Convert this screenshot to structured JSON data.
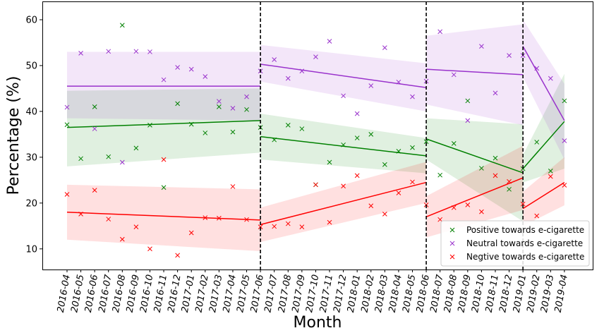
{
  "chart_data": {
    "type": "scatter",
    "title": "",
    "xlabel": "Month",
    "ylabel": "Percentage (%)",
    "ylim": [
      5.5,
      64
    ],
    "yticks": [
      10,
      20,
      30,
      40,
      50,
      60
    ],
    "grid": false,
    "legend_position": "bottom-right",
    "categories": [
      "2016-04",
      "2016-05",
      "2016-06",
      "2016-07",
      "2016-08",
      "2016-09",
      "2016-10",
      "2016-11",
      "2016-12",
      "2017-01",
      "2017-02",
      "2017-03",
      "2017-04",
      "2017-05",
      "2017-06",
      "2017-07",
      "2017-08",
      "2017-09",
      "2017-10",
      "2017-11",
      "2017-12",
      "2018-01",
      "2018-02",
      "2018-03",
      "2018-04",
      "2018-05",
      "2018-06",
      "2018-07",
      "2018-08",
      "2018-09",
      "2018-10",
      "2018-11",
      "2018-12",
      "2019-01",
      "2019-02",
      "2019-03",
      "2019-04"
    ],
    "breakpoints": [
      "2017-06",
      "2018-06",
      "2019-01"
    ],
    "series": [
      {
        "name": "Positive towards e-cigarette",
        "color": "#008000",
        "values": [
          37.1,
          29.7,
          41.0,
          30.1,
          58.8,
          32.0,
          37.0,
          23.4,
          41.7,
          37.2,
          35.3,
          41.0,
          35.5,
          40.4,
          36.5,
          33.8,
          37.0,
          36.2,
          24.0,
          28.9,
          32.7,
          34.2,
          35.0,
          28.4,
          31.3,
          32.1,
          33.4,
          26.1,
          33.0,
          42.3,
          27.6,
          29.8,
          23.0,
          27.5,
          33.3,
          27.0,
          42.3
        ],
        "trend_segments": [
          {
            "x": [
              "2016-04",
              "2017-06"
            ],
            "y": [
              36.5,
              38.0
            ],
            "band": [
              [
                28.0,
                44.5
              ],
              [
                31.0,
                45.0
              ]
            ]
          },
          {
            "x": [
              "2017-06",
              "2018-06"
            ],
            "y": [
              34.5,
              30.3
            ],
            "band": [
              [
                29.5,
                39.5
              ],
              [
                26.5,
                34.2
              ]
            ]
          },
          {
            "x": [
              "2018-06",
              "2019-01"
            ],
            "y": [
              34.0,
              26.6
            ],
            "band": [
              [
                29.5,
                38.5
              ],
              [
                16.0,
                37.2
              ]
            ]
          },
          {
            "x": [
              "2019-01",
              "2019-04"
            ],
            "y": [
              27.5,
              37.8
            ],
            "band": [
              [
                24.5,
                30.5
              ],
              [
                27.5,
                48.2
              ]
            ]
          }
        ]
      },
      {
        "name": "Neutral towards e-cigarette",
        "color": "#9932cc",
        "values": [
          40.9,
          52.7,
          36.2,
          53.1,
          28.9,
          53.1,
          53.0,
          46.9,
          49.6,
          49.2,
          47.6,
          42.2,
          40.7,
          43.2,
          48.8,
          51.3,
          47.2,
          48.8,
          51.9,
          55.3,
          43.4,
          39.5,
          45.6,
          53.9,
          46.4,
          43.2,
          46.6,
          57.4,
          48.0,
          38.0,
          54.2,
          44.0,
          52.2,
          52.2,
          49.4,
          47.2,
          33.6
        ],
        "trend_segments": [
          {
            "x": [
              "2016-04",
              "2017-06"
            ],
            "y": [
              45.5,
              45.5
            ],
            "band": [
              [
                38.5,
                53.0
              ],
              [
                38.0,
                53.0
              ]
            ]
          },
          {
            "x": [
              "2017-06",
              "2018-06"
            ],
            "y": [
              50.3,
              45.2
            ],
            "band": [
              [
                46.5,
                54.5
              ],
              [
                40.0,
                50.5
              ]
            ]
          },
          {
            "x": [
              "2018-06",
              "2019-01"
            ],
            "y": [
              49.2,
              48.0
            ],
            "band": [
              [
                41.5,
                56.5
              ],
              [
                37.0,
                59.0
              ]
            ]
          },
          {
            "x": [
              "2019-01",
              "2019-04"
            ],
            "y": [
              54.2,
              38.0
            ],
            "band": [
              [
                47.5,
                60.0
              ],
              [
                29.5,
                46.0
              ]
            ]
          }
        ]
      },
      {
        "name": "Negtive towards e-cigarette",
        "color": "#ff0000",
        "values": [
          21.9,
          17.6,
          22.8,
          16.5,
          12.1,
          14.8,
          10.0,
          29.5,
          8.6,
          13.5,
          16.8,
          16.7,
          23.6,
          16.4,
          14.8,
          14.9,
          15.5,
          14.8,
          24.0,
          15.8,
          23.7,
          26.0,
          19.4,
          17.6,
          22.2,
          24.6,
          19.6,
          16.4,
          19.0,
          19.6,
          18.1,
          26.0,
          24.7,
          19.8,
          17.2,
          25.8,
          23.9
        ],
        "trend_segments": [
          {
            "x": [
              "2016-04",
              "2017-06"
            ],
            "y": [
              18.0,
              16.3
            ],
            "band": [
              [
                12.0,
                24.0
              ],
              [
                9.5,
                23.0
              ]
            ]
          },
          {
            "x": [
              "2017-06",
              "2018-06"
            ],
            "y": [
              15.3,
              24.5
            ],
            "band": [
              [
                11.5,
                19.0
              ],
              [
                20.0,
                29.0
              ]
            ]
          },
          {
            "x": [
              "2018-06",
              "2019-01"
            ],
            "y": [
              17.0,
              25.5
            ],
            "band": [
              [
                12.5,
                21.5
              ],
              [
                18.5,
                32.5
              ]
            ]
          },
          {
            "x": [
              "2019-01",
              "2019-04"
            ],
            "y": [
              18.8,
              24.5
            ],
            "band": [
              [
                15.0,
                22.5
              ],
              [
                19.5,
                30.0
              ]
            ]
          }
        ]
      }
    ]
  }
}
